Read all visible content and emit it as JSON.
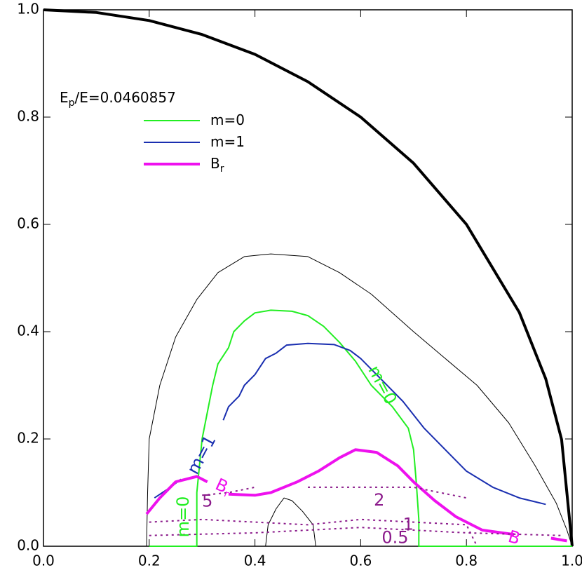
{
  "chart_data": {
    "type": "line",
    "xlim": [
      0,
      1
    ],
    "ylim": [
      0,
      1
    ],
    "xticks": [
      {
        "value": 0,
        "label": "0.0"
      },
      0.2,
      0.4,
      0.6,
      0.8,
      {
        "value": 1,
        "label": "1.0"
      }
    ],
    "yticks": [
      {
        "value": 0,
        "label": "0.0"
      },
      0.2,
      0.4,
      0.6,
      0.8,
      {
        "value": 1,
        "label": "1.0"
      }
    ],
    "legend_title": {
      "text": "E",
      "sub": "p",
      "rest": "/E=0.0460857"
    },
    "legend": "upper left",
    "series": [
      {
        "color": "#000000",
        "width": 4,
        "dash": false,
        "x": [
          0,
          0.1,
          0.2,
          0.3,
          0.4,
          0.5,
          0.6,
          0.7,
          0.8,
          0.9,
          0.95,
          0.98,
          1
        ],
        "values": [
          1,
          0.995,
          0.98,
          0.954,
          0.917,
          0.866,
          0.8,
          0.714,
          0.6,
          0.436,
          0.312,
          0.199,
          0
        ]
      },
      {
        "color": "#000000",
        "width": 1,
        "dash": false,
        "x": [
          0.195,
          0.197,
          0.2,
          0.22,
          0.25,
          0.29,
          0.33,
          0.38,
          0.43,
          0.5,
          0.56,
          0.62,
          0.7,
          0.76,
          0.82,
          0.88,
          0.93,
          0.97,
          0.99,
          1
        ],
        "values": [
          0,
          0.1,
          0.2,
          0.3,
          0.39,
          0.46,
          0.51,
          0.54,
          0.545,
          0.54,
          0.51,
          0.47,
          0.4,
          0.35,
          0.3,
          0.23,
          0.15,
          0.08,
          0.03,
          0
        ]
      },
      {
        "color": "#000000",
        "width": 1,
        "dash": false,
        "x": [
          0.42,
          0.425,
          0.44,
          0.455,
          0.47,
          0.49,
          0.51,
          0.515
        ],
        "values": [
          0,
          0.04,
          0.07,
          0.09,
          0.085,
          0.065,
          0.04,
          0
        ]
      },
      {
        "name": "m=0",
        "color": "#22ee22",
        "width": 2,
        "dash": false,
        "x": [
          0.2,
          0.29,
          0.29,
          0.3,
          0.32,
          0.33,
          0.35,
          0.36,
          0.38,
          0.4,
          0.43,
          0.47,
          0.5,
          0.53,
          0.56,
          0.59,
          0.62,
          0.66,
          0.69,
          0.7,
          0.705,
          0.71,
          0.71,
          0.71,
          1
        ],
        "values": [
          0,
          0,
          0.1,
          0.2,
          0.3,
          0.34,
          0.37,
          0.4,
          0.42,
          0.435,
          0.44,
          0.438,
          0.43,
          0.41,
          0.38,
          0.345,
          0.3,
          0.26,
          0.22,
          0.18,
          0.12,
          0.05,
          0,
          0,
          0
        ]
      },
      {
        "name": "m=1",
        "color": "#1a2fb0",
        "width": 2,
        "dash": false,
        "x": [
          0.21,
          0.24,
          0.26,
          null,
          0.34,
          0.35,
          0.37,
          0.38,
          0.4,
          0.42,
          0.44,
          0.46,
          0.5,
          0.55,
          0.58,
          0.6,
          0.63,
          0.68,
          0.72,
          0.76,
          0.8,
          0.85,
          0.9,
          0.95
        ],
        "values": [
          0.09,
          0.11,
          0.125,
          null,
          0.235,
          0.26,
          0.28,
          0.3,
          0.32,
          0.35,
          0.36,
          0.375,
          0.378,
          0.376,
          0.365,
          0.35,
          0.32,
          0.27,
          0.22,
          0.18,
          0.14,
          0.11,
          0.09,
          0.078
        ]
      },
      {
        "name": "B",
        "name_sub": "r",
        "color": "#ee11ee",
        "width": 4,
        "dash": false,
        "x": [
          0.195,
          0.22,
          0.25,
          0.29,
          0.31,
          null,
          0.35,
          0.4,
          0.43,
          0.48,
          0.52,
          0.56,
          0.59,
          0.63,
          0.67,
          0.7,
          0.74,
          0.78,
          0.83,
          0.89,
          null,
          0.96,
          0.99
        ],
        "values": [
          0.06,
          0.09,
          0.12,
          0.13,
          0.12,
          null,
          0.097,
          0.095,
          0.1,
          0.12,
          0.14,
          0.165,
          0.18,
          0.175,
          0.15,
          0.12,
          0.085,
          0.055,
          0.03,
          0.022,
          null,
          0.015,
          0.01
        ]
      },
      {
        "color": "#8b1a8b",
        "width": 2,
        "dash": true,
        "x": [
          0.3,
          0.35,
          0.4,
          null,
          0.5,
          0.6,
          0.7,
          0.8
        ],
        "values": [
          0.095,
          0.1,
          0.11,
          null,
          0.11,
          0.11,
          0.11,
          0.09
        ]
      },
      {
        "color": "#8b1a8b",
        "width": 2,
        "dash": true,
        "x": [
          0.2,
          0.3,
          0.4,
          0.5,
          0.6,
          0.7,
          0.8,
          0.82
        ],
        "values": [
          0.045,
          0.05,
          0.045,
          0.04,
          0.05,
          0.045,
          0.04,
          0
        ]
      },
      {
        "color": "#8b1a8b",
        "width": 2,
        "dash": true,
        "x": [
          0.2,
          0.4,
          0.6,
          0.7,
          0.8,
          0.98
        ],
        "values": [
          0.02,
          0.025,
          0.035,
          0.03,
          0.025,
          0.02
        ]
      }
    ],
    "annotations": [
      {
        "text": "m=0",
        "color": "#22ee22"
      },
      {
        "text": "m=1",
        "color": "#1a2fb0"
      },
      {
        "text": "m=0",
        "color": "#22ee22"
      },
      {
        "text": "B",
        "sub": "r",
        "color": "#ee11ee"
      },
      {
        "text": "B",
        "color": "#ee11ee"
      },
      {
        "text": "5",
        "color": "#8b1a8b"
      },
      {
        "text": "2",
        "color": "#8b1a8b"
      },
      {
        "text": "1",
        "color": "#8b1a8b"
      },
      {
        "text": "0.5",
        "color": "#8b1a8b"
      }
    ]
  }
}
